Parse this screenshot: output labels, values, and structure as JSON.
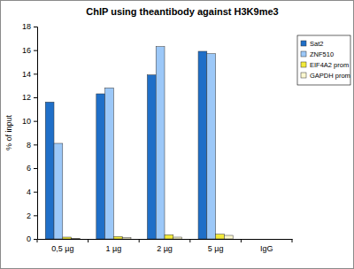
{
  "chart_data": {
    "type": "bar",
    "title": "ChIP using theantibody against H3K9me3",
    "y_label": "% of input",
    "categories": [
      "0,5 µg",
      "1 µg",
      "2 µg",
      "5 µg",
      "IgG"
    ],
    "series": [
      {
        "name": "Sat2",
        "color": "#1f6fc8",
        "values": [
          11.6,
          12.3,
          13.9,
          15.9,
          0
        ]
      },
      {
        "name": "ZNF510",
        "color": "#9cc8f8",
        "values": [
          8.1,
          12.8,
          16.3,
          15.7,
          0
        ]
      },
      {
        "name": "EIF4A2 prom",
        "color": "#f2ea3a",
        "values": [
          0.15,
          0.2,
          0.35,
          0.4,
          0
        ]
      },
      {
        "name": "GAPDH prom",
        "color": "#fbf8d0",
        "values": [
          0.05,
          0.1,
          0.15,
          0.3,
          0
        ]
      }
    ],
    "ylim": [
      0,
      18
    ],
    "yticks": [
      0,
      2,
      4,
      6,
      8,
      10,
      12,
      14,
      16,
      18
    ],
    "grid": false,
    "legend": "right"
  }
}
